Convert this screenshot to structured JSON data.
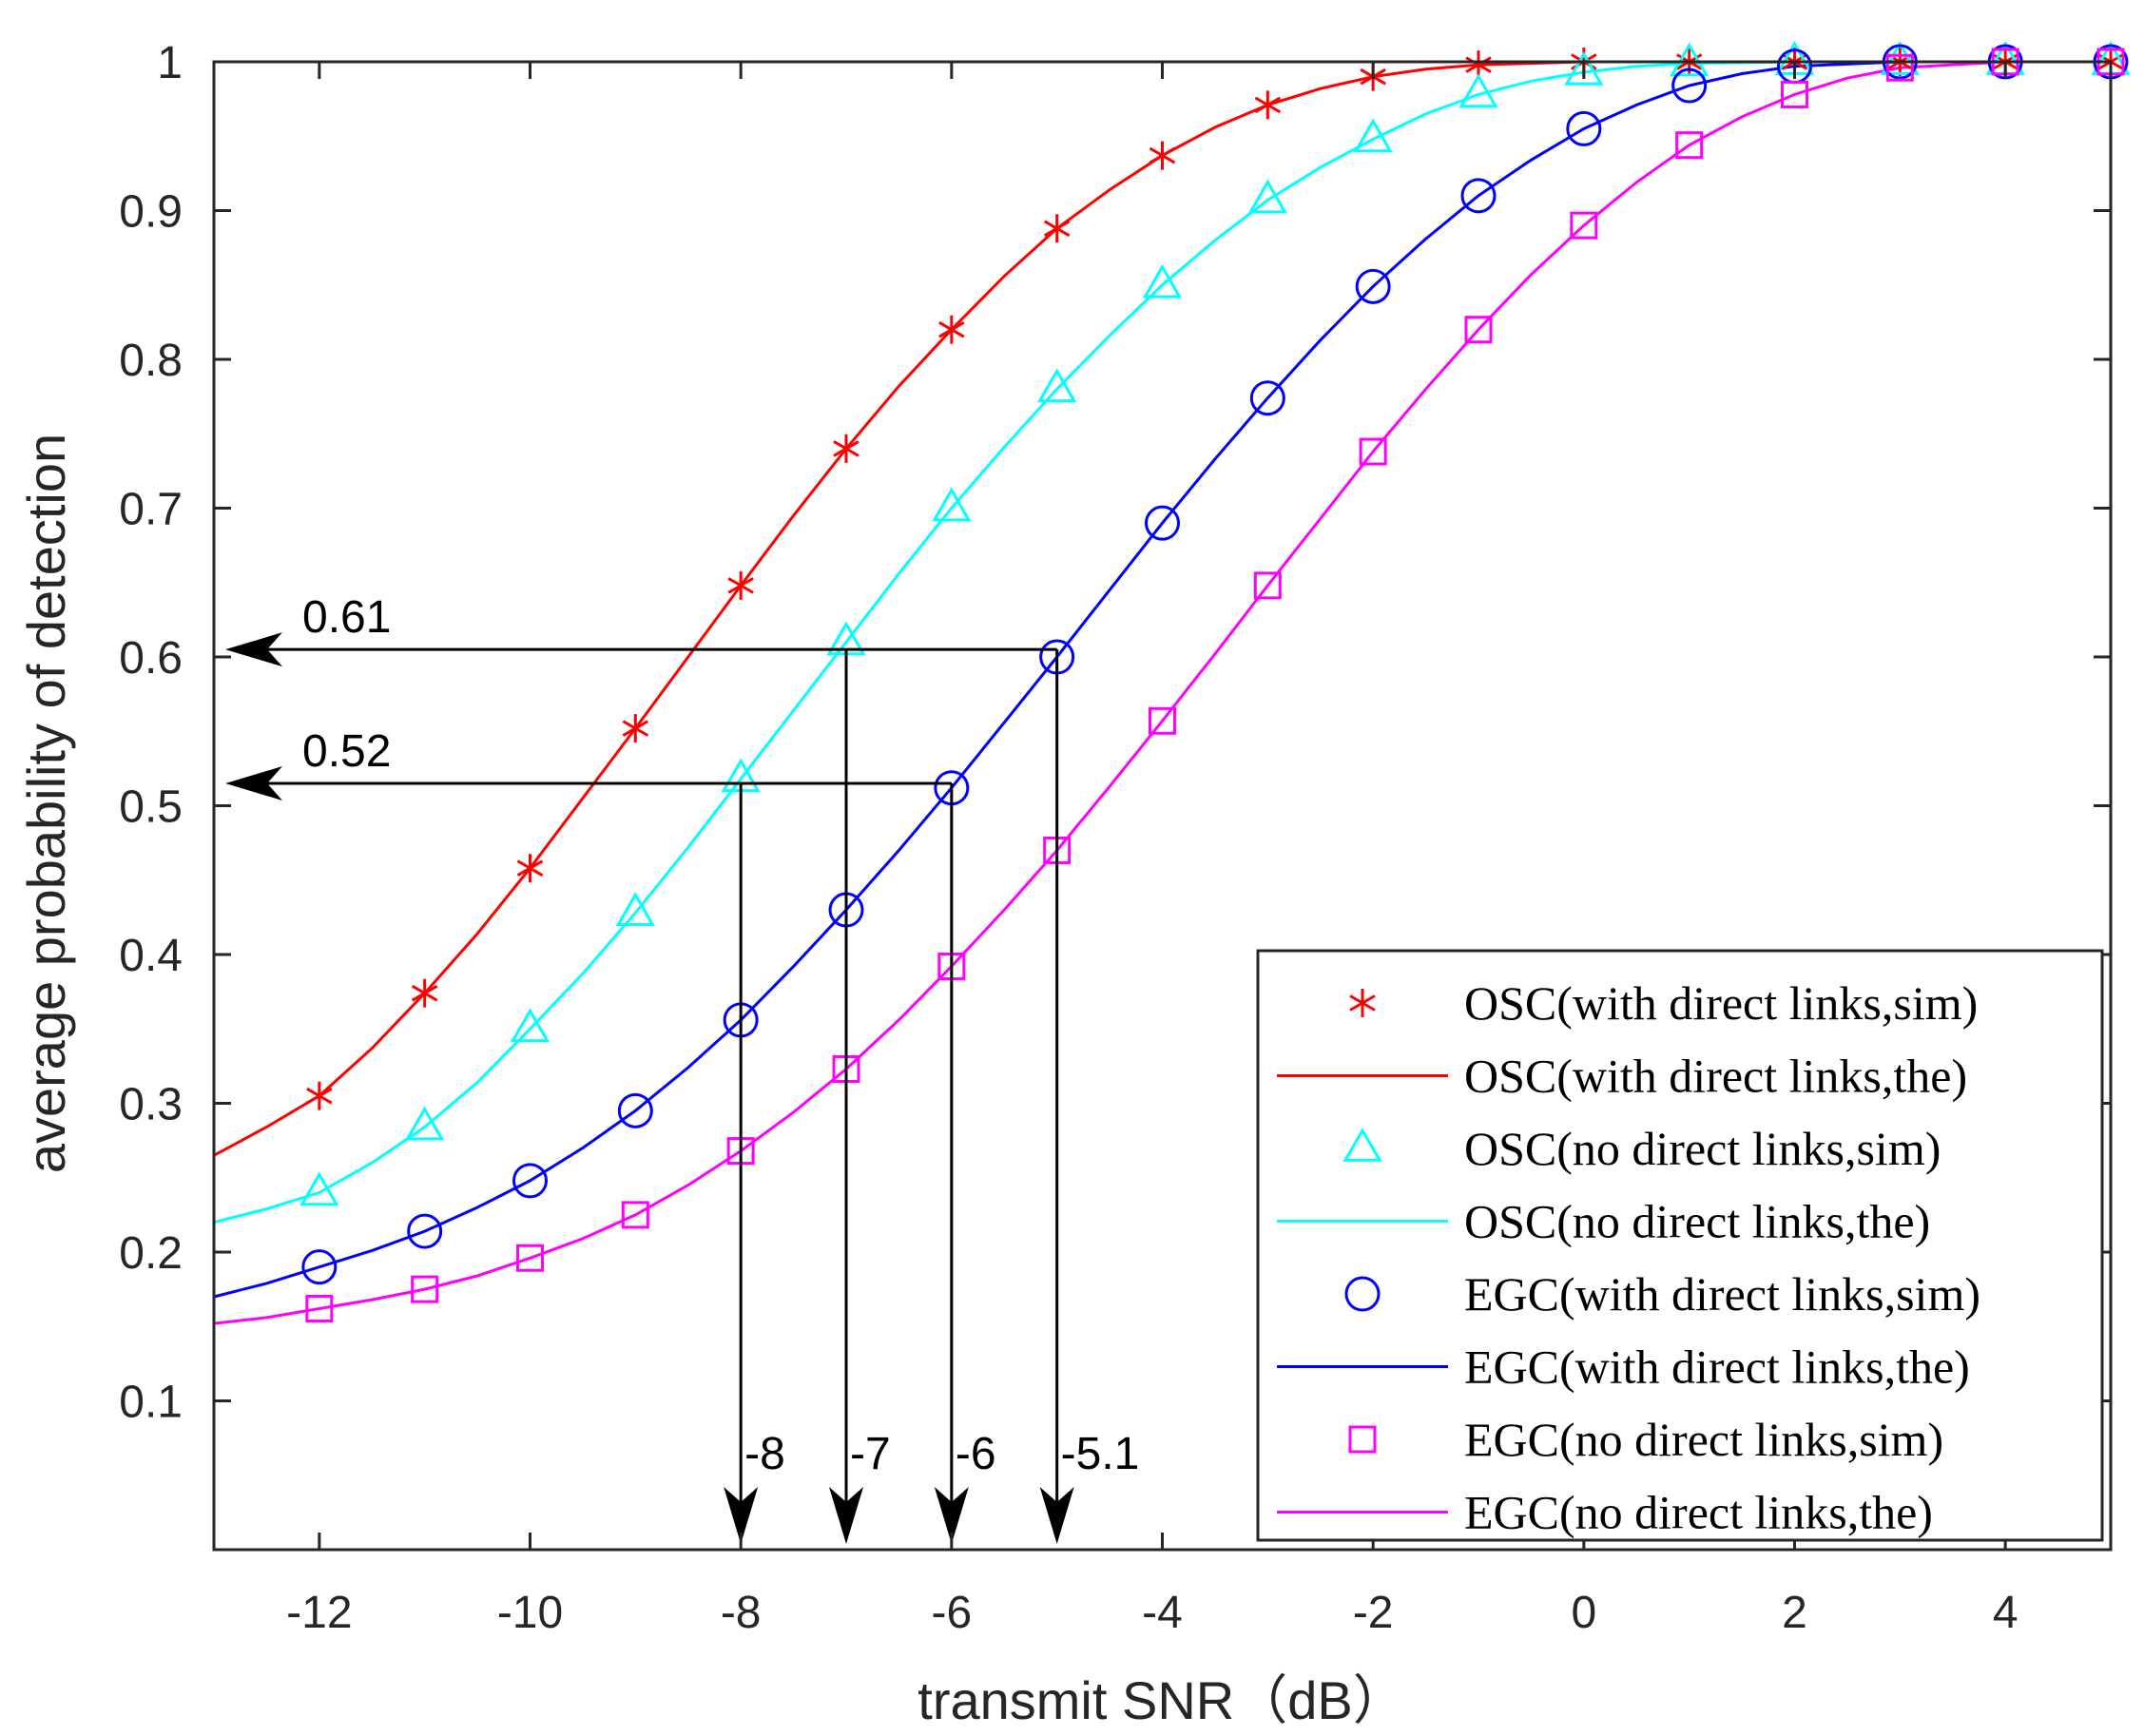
{
  "chart_data": {
    "type": "line",
    "title": "",
    "xlabel": "transmit SNR（dB）",
    "ylabel": "average probability of detection",
    "xlim": [
      -13,
      5
    ],
    "ylim": [
      0,
      1
    ],
    "grid": false,
    "legend_position": "bottom-right",
    "x_ticks": [
      {
        "value": -12,
        "label": "-12"
      },
      {
        "value": -10,
        "label": "-10"
      },
      {
        "value": -8,
        "label": "-8"
      },
      {
        "value": -6,
        "label": "-6"
      },
      {
        "value": -4,
        "label": "-4"
      },
      {
        "value": -2,
        "label": "-2"
      },
      {
        "value": 0,
        "label": "0"
      },
      {
        "value": 2,
        "label": "2"
      },
      {
        "value": 4,
        "label": "4"
      }
    ],
    "y_ticks": [
      {
        "value": 0.1,
        "label": "0.1"
      },
      {
        "value": 0.2,
        "label": "0.2"
      },
      {
        "value": 0.3,
        "label": "0.3"
      },
      {
        "value": 0.4,
        "label": "0.4"
      },
      {
        "value": 0.5,
        "label": "0.5"
      },
      {
        "value": 0.6,
        "label": "0.6"
      },
      {
        "value": 0.7,
        "label": "0.7"
      },
      {
        "value": 0.8,
        "label": "0.8"
      },
      {
        "value": 0.9,
        "label": "0.9"
      },
      {
        "value": 1,
        "label": "1"
      }
    ],
    "series": [
      {
        "name": "OSC(with direct links,sim)",
        "kind": "markers",
        "marker": "asterisk",
        "color": "#ff0000",
        "x": [
          -12,
          -11,
          -10,
          -9,
          -8,
          -7,
          -6,
          -5,
          -4,
          -3,
          -2,
          -1,
          0,
          1,
          2,
          3,
          4,
          5
        ],
        "y": [
          0.305,
          0.374,
          0.458,
          0.552,
          0.648,
          0.74,
          0.82,
          0.888,
          0.937,
          0.971,
          0.99,
          0.998,
          1.0,
          1.0,
          1.0,
          1.0,
          1.0,
          1.0
        ]
      },
      {
        "name": "OSC(with direct links,the)",
        "kind": "line",
        "color": "#ff0000",
        "x": [
          -13,
          -12.5,
          -12,
          -11.5,
          -11,
          -10.5,
          -10,
          -9.5,
          -9,
          -8.5,
          -8,
          -7.5,
          -7,
          -6.5,
          -6,
          -5.5,
          -5,
          -4.5,
          -4,
          -3.5,
          -3,
          -2.5,
          -2,
          -1.5,
          -1,
          -0.5,
          0,
          1,
          2,
          3,
          4,
          5
        ],
        "y": [
          0.265,
          0.284,
          0.305,
          0.337,
          0.374,
          0.414,
          0.458,
          0.505,
          0.552,
          0.6,
          0.648,
          0.695,
          0.74,
          0.782,
          0.82,
          0.856,
          0.888,
          0.914,
          0.937,
          0.956,
          0.971,
          0.982,
          0.99,
          0.995,
          0.998,
          0.999,
          1.0,
          1.0,
          1.0,
          1.0,
          1.0,
          1.0
        ]
      },
      {
        "name": "OSC(no direct links,sim)",
        "kind": "markers",
        "marker": "triangle",
        "color": "#00ffff",
        "x": [
          -12,
          -11,
          -10,
          -9,
          -8,
          -7,
          -6,
          -5,
          -4,
          -3,
          -2,
          -1,
          0,
          1,
          2,
          3,
          4,
          5
        ],
        "y": [
          0.24,
          0.284,
          0.35,
          0.428,
          0.518,
          0.61,
          0.7,
          0.78,
          0.85,
          0.907,
          0.948,
          0.978,
          0.993,
          0.999,
          1.0,
          1.0,
          1.0,
          1.0
        ]
      },
      {
        "name": "OSC(no direct links,the)",
        "kind": "line",
        "color": "#00ffff",
        "x": [
          -13,
          -12.5,
          -12,
          -11.5,
          -11,
          -10.5,
          -10,
          -9.5,
          -9,
          -8.5,
          -8,
          -7.5,
          -7,
          -6.5,
          -6,
          -5.5,
          -5,
          -4.5,
          -4,
          -3.5,
          -3,
          -2.5,
          -2,
          -1.5,
          -1,
          -0.5,
          0,
          0.5,
          1,
          2,
          3,
          4,
          5
        ],
        "y": [
          0.22,
          0.229,
          0.24,
          0.26,
          0.284,
          0.314,
          0.35,
          0.387,
          0.428,
          0.472,
          0.518,
          0.564,
          0.61,
          0.656,
          0.7,
          0.741,
          0.78,
          0.816,
          0.85,
          0.88,
          0.907,
          0.929,
          0.948,
          0.965,
          0.978,
          0.987,
          0.993,
          0.997,
          0.999,
          1.0,
          1.0,
          1.0,
          1.0
        ]
      },
      {
        "name": "EGC(with direct links,sim)",
        "kind": "markers",
        "marker": "circle",
        "color": "#0000ff",
        "x": [
          -12,
          -11,
          -10,
          -9,
          -8,
          -7,
          -6,
          -5,
          -4,
          -3,
          -2,
          -1,
          0,
          1,
          2,
          3,
          4,
          5
        ],
        "y": [
          0.19,
          0.214,
          0.248,
          0.295,
          0.356,
          0.43,
          0.512,
          0.6,
          0.69,
          0.774,
          0.849,
          0.91,
          0.955,
          0.984,
          0.997,
          1.0,
          1.0,
          1.0
        ]
      },
      {
        "name": "EGC(with direct links,the)",
        "kind": "line",
        "color": "#0000ff",
        "x": [
          -13,
          -12.5,
          -12,
          -11.5,
          -11,
          -10.5,
          -10,
          -9.5,
          -9,
          -8.5,
          -8,
          -7.5,
          -7,
          -6.5,
          -6,
          -5.5,
          -5,
          -4.5,
          -4,
          -3.5,
          -3,
          -2.5,
          -2,
          -1.5,
          -1,
          -0.5,
          0,
          0.5,
          1,
          1.5,
          2,
          3,
          4,
          5
        ],
        "y": [
          0.17,
          0.179,
          0.19,
          0.201,
          0.214,
          0.23,
          0.248,
          0.27,
          0.295,
          0.324,
          0.356,
          0.392,
          0.43,
          0.47,
          0.512,
          0.556,
          0.6,
          0.645,
          0.69,
          0.733,
          0.774,
          0.813,
          0.849,
          0.881,
          0.91,
          0.934,
          0.955,
          0.971,
          0.984,
          0.992,
          0.997,
          1.0,
          1.0,
          1.0
        ]
      },
      {
        "name": "EGC(no direct links,sim)",
        "kind": "markers",
        "marker": "square",
        "color": "#ff00ff",
        "x": [
          -12,
          -11,
          -10,
          -9,
          -8,
          -7,
          -6,
          -5,
          -4,
          -3,
          -2,
          -1,
          0,
          1,
          2,
          3,
          4,
          5
        ],
        "y": [
          0.162,
          0.175,
          0.196,
          0.225,
          0.268,
          0.323,
          0.392,
          0.47,
          0.557,
          0.648,
          0.738,
          0.82,
          0.89,
          0.944,
          0.978,
          0.996,
          1.0,
          1.0
        ]
      },
      {
        "name": "EGC(no direct links,the)",
        "kind": "line",
        "color": "#ff00ff",
        "x": [
          -13,
          -12.5,
          -12,
          -11.5,
          -11,
          -10.5,
          -10,
          -9.5,
          -9,
          -8.5,
          -8,
          -7.5,
          -7,
          -6.5,
          -6,
          -5.5,
          -5,
          -4.5,
          -4,
          -3.5,
          -3,
          -2.5,
          -2,
          -1.5,
          -1,
          -0.5,
          0,
          0.5,
          1,
          1.5,
          2,
          2.5,
          3,
          4,
          5
        ],
        "y": [
          0.152,
          0.156,
          0.162,
          0.168,
          0.175,
          0.184,
          0.196,
          0.209,
          0.225,
          0.245,
          0.268,
          0.294,
          0.323,
          0.356,
          0.392,
          0.43,
          0.47,
          0.513,
          0.557,
          0.602,
          0.648,
          0.693,
          0.738,
          0.78,
          0.82,
          0.857,
          0.89,
          0.919,
          0.944,
          0.963,
          0.978,
          0.989,
          0.996,
          1.0,
          1.0
        ]
      }
    ],
    "annotations": {
      "horizontal": [
        {
          "label": "0.61",
          "y": 0.605,
          "from_x": -5,
          "to_x": -13
        },
        {
          "label": "0.52",
          "y": 0.515,
          "from_x": -6,
          "to_x": -13
        }
      ],
      "vertical": [
        {
          "label": "-8",
          "x": -8,
          "from_y": 0.515,
          "to_y": 0
        },
        {
          "label": "-7",
          "x": -7,
          "from_y": 0.605,
          "to_y": 0
        },
        {
          "label": "-6",
          "x": -6,
          "from_y": 0.515,
          "to_y": 0
        },
        {
          "label": "-5.1",
          "x": -5,
          "from_y": 0.605,
          "to_y": 0
        }
      ]
    }
  }
}
